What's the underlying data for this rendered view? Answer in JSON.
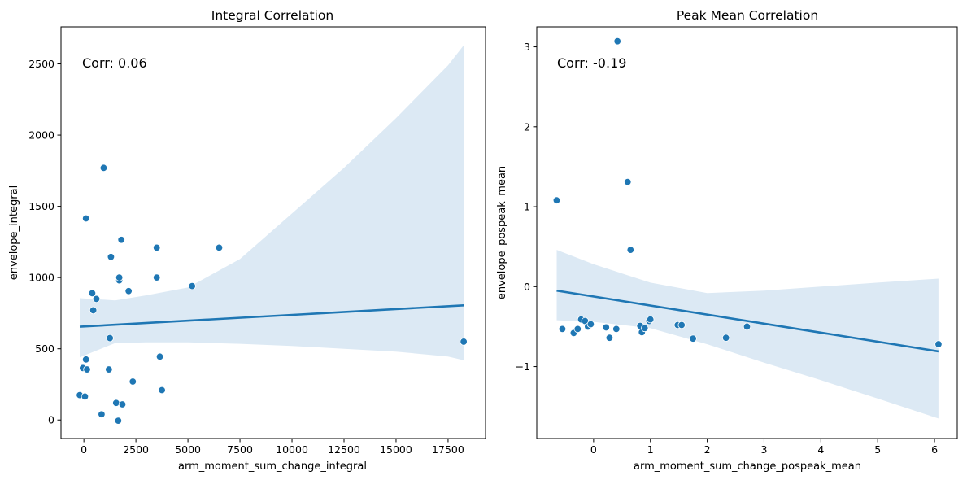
{
  "chart_data": [
    {
      "type": "scatter",
      "title": "Integral Correlation",
      "xlabel": "arm_moment_sum_change_integral",
      "ylabel": "envelope_integral",
      "annotation": "Corr: 0.06",
      "xlim": [
        -1100,
        19300
      ],
      "ylim": [
        -130,
        2760
      ],
      "xticks": [
        0,
        2500,
        5000,
        7500,
        10000,
        12500,
        15000,
        17500
      ],
      "xtick_labels": [
        "0",
        "2500",
        "5000",
        "7500",
        "10000",
        "12500",
        "15000",
        "17500"
      ],
      "yticks": [
        0,
        500,
        1000,
        1500,
        2000,
        2500
      ],
      "ytick_labels": [
        "0",
        "500",
        "1000",
        "1500",
        "2000",
        "2500"
      ],
      "point_color": "#1f77b4",
      "band_color": "#dce9f4",
      "line_color": "#1f77b4",
      "points": [
        {
          "x": -200,
          "y": 175
        },
        {
          "x": -50,
          "y": 365
        },
        {
          "x": 50,
          "y": 165
        },
        {
          "x": 100,
          "y": 425
        },
        {
          "x": 150,
          "y": 355
        },
        {
          "x": 100,
          "y": 1415
        },
        {
          "x": 400,
          "y": 890
        },
        {
          "x": 450,
          "y": 770
        },
        {
          "x": 600,
          "y": 850
        },
        {
          "x": 850,
          "y": 40
        },
        {
          "x": 950,
          "y": 1770
        },
        {
          "x": 1200,
          "y": 355
        },
        {
          "x": 1250,
          "y": 575
        },
        {
          "x": 1300,
          "y": 1145
        },
        {
          "x": 1550,
          "y": 120
        },
        {
          "x": 1650,
          "y": -5
        },
        {
          "x": 1700,
          "y": 980
        },
        {
          "x": 1700,
          "y": 1000
        },
        {
          "x": 1800,
          "y": 1265
        },
        {
          "x": 1850,
          "y": 110
        },
        {
          "x": 2150,
          "y": 905
        },
        {
          "x": 2350,
          "y": 270
        },
        {
          "x": 3500,
          "y": 1210
        },
        {
          "x": 3500,
          "y": 1000
        },
        {
          "x": 3650,
          "y": 445
        },
        {
          "x": 3750,
          "y": 210
        },
        {
          "x": 5200,
          "y": 940
        },
        {
          "x": 6500,
          "y": 1210
        },
        {
          "x": 18250,
          "y": 550
        }
      ],
      "regression": {
        "x": [
          -200,
          18250
        ],
        "y": [
          655,
          805
        ]
      },
      "confidence_band": {
        "x": [
          -200,
          1500,
          3000,
          5000,
          7500,
          10000,
          12500,
          15000,
          17500,
          18250
        ],
        "upper": [
          855,
          840,
          875,
          930,
          1130,
          1450,
          1770,
          2120,
          2490,
          2630
        ],
        "lower": [
          440,
          540,
          545,
          545,
          535,
          520,
          500,
          480,
          445,
          420
        ]
      }
    },
    {
      "type": "scatter",
      "title": "Peak Mean Correlation",
      "xlabel": "arm_moment_sum_change_pospeak_mean",
      "ylabel": "envelope_pospeak_mean",
      "annotation": "Corr: -0.19",
      "xlim": [
        -1.0,
        6.4
      ],
      "ylim": [
        -1.9,
        3.25
      ],
      "xticks": [
        0,
        1,
        2,
        3,
        4,
        5,
        6
      ],
      "xtick_labels": [
        "0",
        "1",
        "2",
        "3",
        "4",
        "5",
        "6"
      ],
      "yticks": [
        -1,
        0,
        1,
        2,
        3
      ],
      "ytick_labels": [
        "−1",
        "0",
        "1",
        "2",
        "3"
      ],
      "point_color": "#1f77b4",
      "band_color": "#dce9f4",
      "line_color": "#1f77b4",
      "points": [
        {
          "x": -0.65,
          "y": 1.08
        },
        {
          "x": -0.55,
          "y": -0.53
        },
        {
          "x": -0.35,
          "y": -0.58
        },
        {
          "x": -0.28,
          "y": -0.53
        },
        {
          "x": -0.22,
          "y": -0.41
        },
        {
          "x": -0.15,
          "y": -0.43
        },
        {
          "x": -0.1,
          "y": -0.5
        },
        {
          "x": -0.05,
          "y": -0.47
        },
        {
          "x": 0.22,
          "y": -0.51
        },
        {
          "x": 0.28,
          "y": -0.64
        },
        {
          "x": 0.4,
          "y": -0.53
        },
        {
          "x": 0.42,
          "y": 3.07
        },
        {
          "x": 0.6,
          "y": 1.31
        },
        {
          "x": 0.65,
          "y": 0.46
        },
        {
          "x": 0.82,
          "y": -0.49
        },
        {
          "x": 0.85,
          "y": -0.57
        },
        {
          "x": 0.9,
          "y": -0.52
        },
        {
          "x": 0.98,
          "y": -0.43
        },
        {
          "x": 1.0,
          "y": -0.41
        },
        {
          "x": 1.48,
          "y": -0.48
        },
        {
          "x": 1.55,
          "y": -0.48
        },
        {
          "x": 1.75,
          "y": -0.65
        },
        {
          "x": 2.33,
          "y": -0.64
        },
        {
          "x": 2.7,
          "y": -0.5
        },
        {
          "x": 6.07,
          "y": -0.72
        }
      ],
      "regression": {
        "x": [
          -0.65,
          6.07
        ],
        "y": [
          -0.05,
          -0.81
        ]
      },
      "confidence_band": {
        "x": [
          -0.65,
          0,
          1,
          2,
          3,
          4,
          5,
          6.07
        ],
        "upper": [
          0.46,
          0.28,
          0.05,
          -0.08,
          -0.05,
          0.0,
          0.05,
          0.1
        ],
        "lower": [
          -0.42,
          -0.44,
          -0.52,
          -0.72,
          -0.95,
          -1.17,
          -1.4,
          -1.65
        ]
      }
    }
  ]
}
